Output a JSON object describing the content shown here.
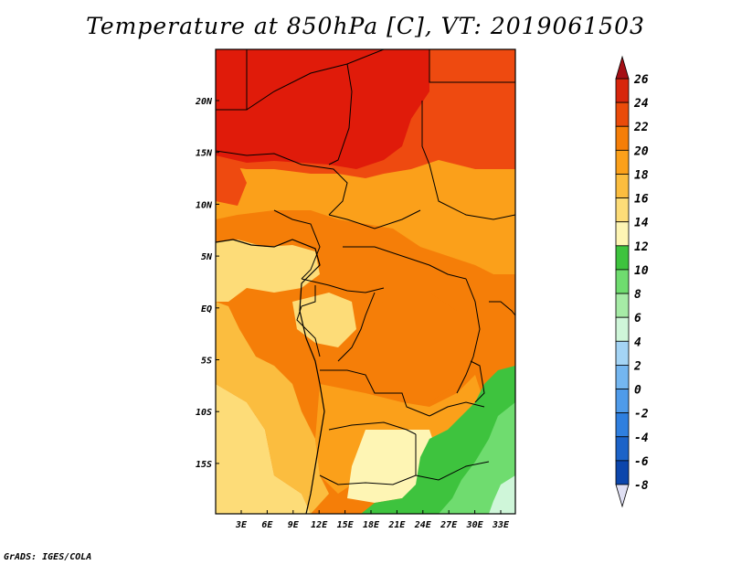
{
  "title": "Temperature at 850hPa [C], VT: 2019061503",
  "footer": "GrADS: IGES/COLA",
  "map": {
    "lon_ticks": [
      "3E",
      "6E",
      "9E",
      "12E",
      "15E",
      "18E",
      "21E",
      "24E",
      "27E",
      "30E",
      "33E"
    ],
    "lat_ticks": [
      "20N",
      "15N",
      "10N",
      "5N",
      "EQ",
      "5S",
      "10S",
      "15S"
    ]
  },
  "colorbar": {
    "labels": [
      "26",
      "24",
      "22",
      "20",
      "18",
      "16",
      "14",
      "12",
      "10",
      "8",
      "6",
      "4",
      "2",
      "0",
      "-2",
      "-4",
      "-6",
      "-8"
    ],
    "colors": [
      "#a50f15",
      "#d7260c",
      "#ea4b0a",
      "#f57e08",
      "#fba01a",
      "#fbbd3f",
      "#fddc78",
      "#fef5b4",
      "#3ec33e",
      "#6fdc6f",
      "#a6eba6",
      "#cff6d9",
      "#a4d4f5",
      "#74b6f0",
      "#4f9bea",
      "#2f7fdf",
      "#1c63c8",
      "#0c46ac",
      "#082c88",
      "#06106a",
      "#e0e0f4"
    ]
  },
  "palette": {
    "deep_red": "#e01b0a",
    "red_orange": "#ee4a10",
    "orange": "#f57e08",
    "light_orange": "#fba01a",
    "amber": "#fbbd3f",
    "pale_yellow": "#fddc78",
    "cream": "#fef5b4",
    "green": "#3ec33e",
    "light_green": "#6fdc6f",
    "pale_green": "#a6eba6",
    "ice": "#cff6d9"
  }
}
